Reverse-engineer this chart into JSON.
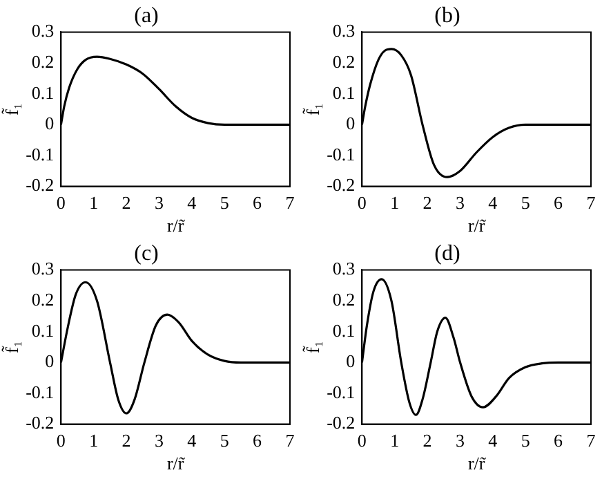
{
  "chart_data": [
    {
      "type": "line",
      "title": "(a)",
      "xlabel": "r/r̃",
      "ylabel": "f̃₁",
      "color": "#000000",
      "grid": false,
      "xlim": [
        0,
        7
      ],
      "ylim": [
        -0.2,
        0.3
      ],
      "xticks": [
        0,
        1,
        2,
        3,
        4,
        5,
        6,
        7
      ],
      "yticks": [
        -0.2,
        -0.1,
        0,
        0.1,
        0.2,
        0.3
      ],
      "x": [
        0,
        0.1,
        0.25,
        0.5,
        0.75,
        1.1,
        1.5,
        2,
        2.5,
        3,
        3.5,
        4,
        4.5,
        5,
        5.5,
        6,
        7
      ],
      "values": [
        0,
        0.06,
        0.12,
        0.18,
        0.21,
        0.22,
        0.213,
        0.195,
        0.165,
        0.115,
        0.06,
        0.022,
        0.005,
        0,
        0,
        0,
        0
      ]
    },
    {
      "type": "line",
      "title": "(b)",
      "xlabel": "r/r̃",
      "ylabel": "f̃₁",
      "color": "#000000",
      "grid": false,
      "xlim": [
        0,
        7
      ],
      "ylim": [
        -0.2,
        0.3
      ],
      "xticks": [
        0,
        1,
        2,
        3,
        4,
        5,
        6,
        7
      ],
      "yticks": [
        -0.2,
        -0.1,
        0,
        0.1,
        0.2,
        0.3
      ],
      "x": [
        0,
        0.1,
        0.25,
        0.5,
        0.7,
        0.9,
        1.2,
        1.5,
        1.85,
        2.2,
        2.6,
        3,
        3.5,
        4,
        4.5,
        5,
        5.5,
        7
      ],
      "values": [
        0,
        0.06,
        0.13,
        0.21,
        0.24,
        0.245,
        0.225,
        0.16,
        0,
        -0.13,
        -0.17,
        -0.15,
        -0.09,
        -0.04,
        -0.01,
        0,
        0,
        0
      ]
    },
    {
      "type": "line",
      "title": "(c)",
      "xlabel": "r/r̃",
      "ylabel": "f̃₁",
      "color": "#000000",
      "grid": false,
      "xlim": [
        0,
        7
      ],
      "ylim": [
        -0.2,
        0.3
      ],
      "xticks": [
        0,
        1,
        2,
        3,
        4,
        5,
        6,
        7
      ],
      "yticks": [
        -0.2,
        -0.1,
        0,
        0.1,
        0.2,
        0.3
      ],
      "x": [
        0,
        0.2,
        0.45,
        0.75,
        1.1,
        1.5,
        1.75,
        2,
        2.25,
        2.55,
        2.9,
        3.25,
        3.6,
        4,
        4.5,
        5,
        5.5,
        6,
        7
      ],
      "values": [
        0,
        0.11,
        0.22,
        0.26,
        0.2,
        0,
        -0.12,
        -0.165,
        -0.12,
        0,
        0.12,
        0.155,
        0.13,
        0.07,
        0.025,
        0.005,
        0,
        0,
        0
      ]
    },
    {
      "type": "line",
      "title": "(d)",
      "xlabel": "r/r̃",
      "ylabel": "f̃₁",
      "color": "#000000",
      "grid": false,
      "xlim": [
        0,
        7
      ],
      "ylim": [
        -0.2,
        0.3
      ],
      "xticks": [
        0,
        1,
        2,
        3,
        4,
        5,
        6,
        7
      ],
      "yticks": [
        -0.2,
        -0.1,
        0,
        0.1,
        0.2,
        0.3
      ],
      "x": [
        0,
        0.15,
        0.35,
        0.6,
        0.9,
        1.2,
        1.45,
        1.65,
        1.85,
        2.1,
        2.3,
        2.55,
        2.8,
        3,
        3.35,
        3.7,
        4.1,
        4.5,
        5,
        5.5,
        6,
        7
      ],
      "values": [
        0,
        0.12,
        0.23,
        0.27,
        0.2,
        0,
        -0.13,
        -0.17,
        -0.12,
        0,
        0.1,
        0.145,
        0.08,
        0,
        -0.11,
        -0.145,
        -0.11,
        -0.05,
        -0.015,
        -0.003,
        0,
        0
      ]
    }
  ]
}
